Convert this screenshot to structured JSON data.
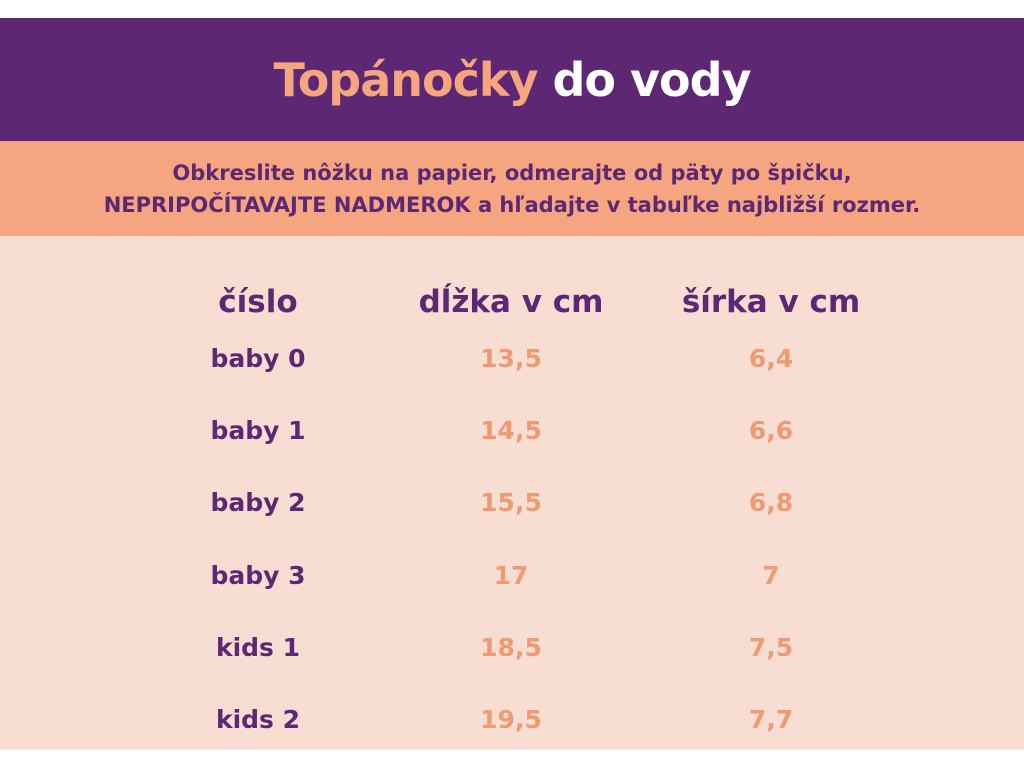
{
  "title": {
    "accent": "Topánočky",
    "rest": "do vody"
  },
  "instructions": {
    "line1": "Obkreslite nôžku na papier, odmerajte od päty po špičku,",
    "line2": "NEPRIPOČÍTAVAJTE NADMEROK a hľadajte v tabuľke najbližší rozmer."
  },
  "table": {
    "headers": [
      "číslo",
      "dĺžka v cm",
      "šírka v cm"
    ],
    "rows": [
      [
        "baby 0",
        "13,5",
        "6,4"
      ],
      [
        "baby 1",
        "14,5",
        "6,6"
      ],
      [
        "baby 2",
        "15,5",
        "6,8"
      ],
      [
        "baby 3",
        "17",
        "7"
      ],
      [
        "kids 1",
        "18,5",
        "7,5"
      ],
      [
        "kids 2",
        "19,5",
        "7,7"
      ]
    ]
  },
  "colors": {
    "purple": "#5e2773",
    "peach": "#f5a57f",
    "background": "#f8ddd3",
    "value_text": "#ee9a72"
  }
}
